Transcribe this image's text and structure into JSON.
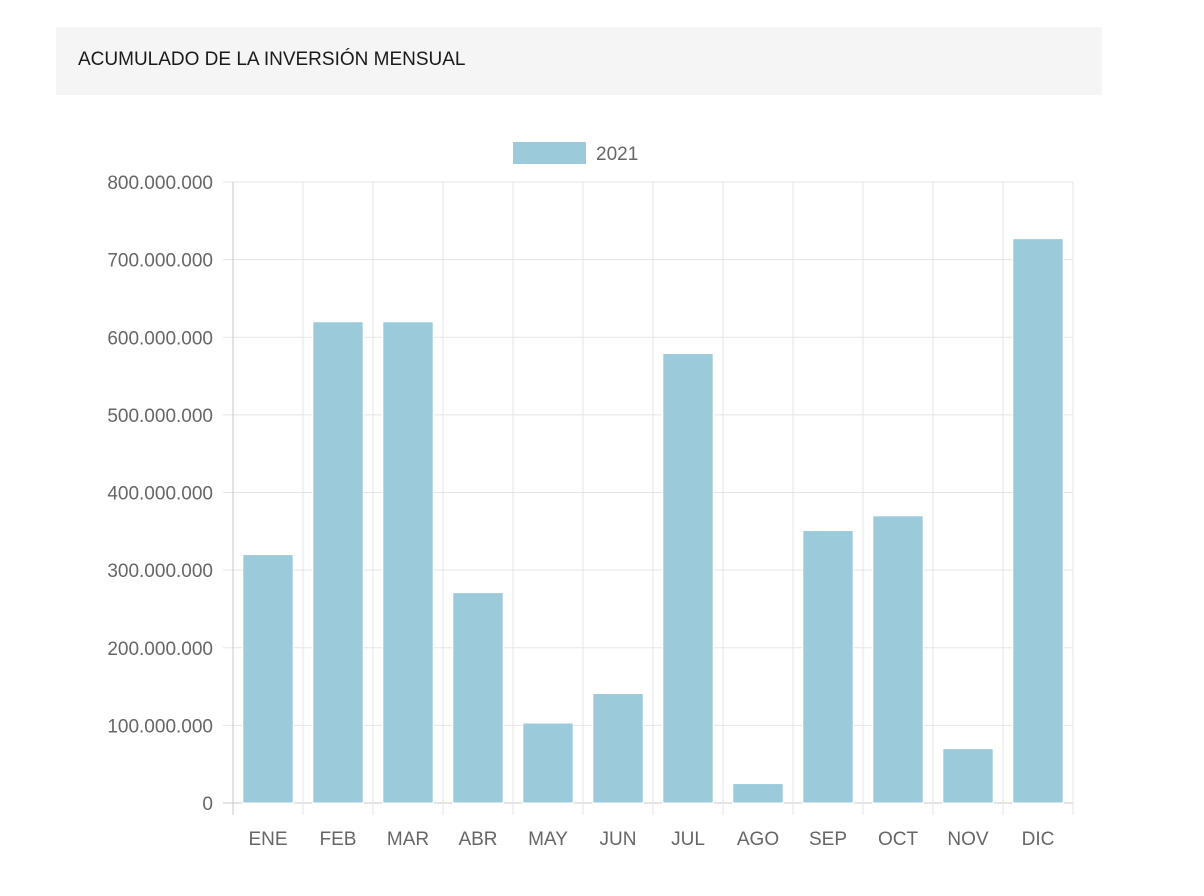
{
  "panel": {
    "title": "ACUMULADO DE LA INVERSIÓN MENSUAL"
  },
  "chart_data": {
    "type": "bar",
    "categories": [
      "ENE",
      "FEB",
      "MAR",
      "ABR",
      "MAY",
      "JUN",
      "JUL",
      "AGO",
      "SEP",
      "OCT",
      "NOV",
      "DIC"
    ],
    "series": [
      {
        "name": "2021",
        "values": [
          320000000,
          620000000,
          620000000,
          271000000,
          103000000,
          141000000,
          579000000,
          25000000,
          351000000,
          370000000,
          70000000,
          727000000
        ],
        "color": "#9bcadb"
      }
    ],
    "ylim": [
      0,
      800000000
    ],
    "yticks": [
      "0",
      "100.000.000",
      "200.000.000",
      "300.000.000",
      "400.000.000",
      "500.000.000",
      "600.000.000",
      "700.000.000",
      "800.000.000"
    ],
    "grid": true,
    "legend": "top-center"
  }
}
